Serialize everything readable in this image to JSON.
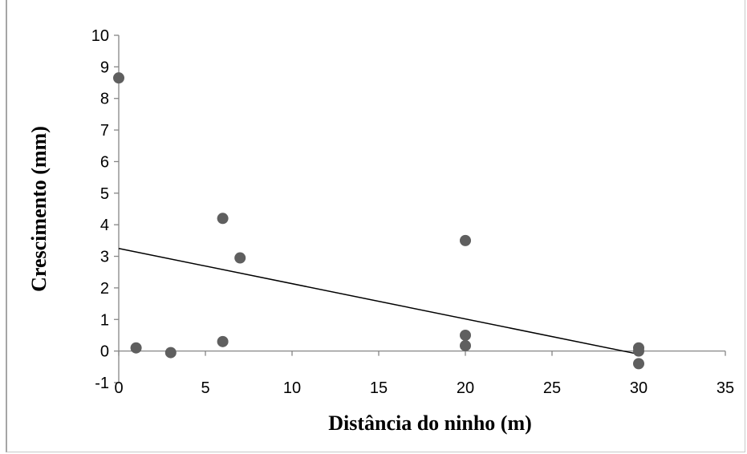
{
  "chart_data": {
    "type": "scatter",
    "title": "",
    "xlabel": "Distância do ninho (m)",
    "ylabel": "Crescimento (mm)",
    "xlim": [
      0,
      35
    ],
    "ylim": [
      -1,
      10
    ],
    "x_ticks": [
      "0",
      "5",
      "10",
      "15",
      "20",
      "25",
      "30",
      "35"
    ],
    "y_ticks": [
      "-1",
      "0",
      "1",
      "2",
      "3",
      "4",
      "5",
      "6",
      "7",
      "8",
      "9",
      "10"
    ],
    "grid": false,
    "legend": "none",
    "marker_color": "#5f5f5f",
    "trendline_color": "#000000",
    "points": [
      {
        "x": 0,
        "y": 8.65
      },
      {
        "x": 1,
        "y": 0.1
      },
      {
        "x": 3,
        "y": -0.05
      },
      {
        "x": 6,
        "y": 4.2
      },
      {
        "x": 6,
        "y": 0.3
      },
      {
        "x": 7,
        "y": 2.95
      },
      {
        "x": 20,
        "y": 3.5
      },
      {
        "x": 20,
        "y": 0.5
      },
      {
        "x": 20,
        "y": 0.17
      },
      {
        "x": 30,
        "y": 0.1
      },
      {
        "x": 30,
        "y": 0.0
      },
      {
        "x": 30,
        "y": -0.4
      }
    ],
    "trendline": {
      "x": [
        0,
        30
      ],
      "y": [
        3.25,
        -0.1
      ]
    }
  }
}
